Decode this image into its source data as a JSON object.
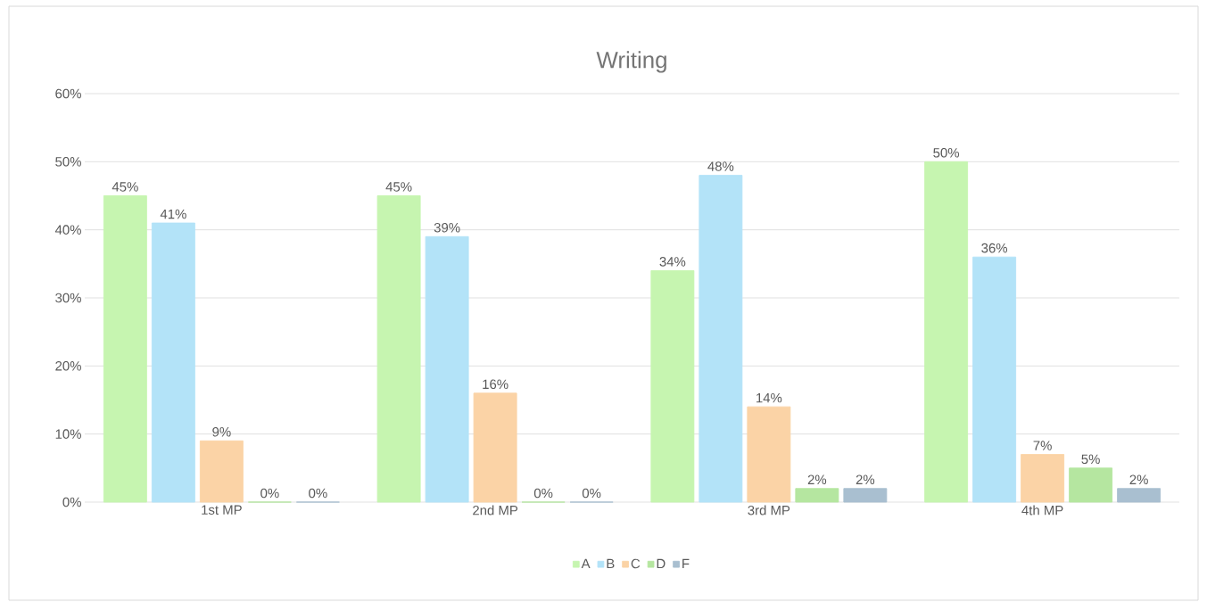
{
  "chart_data": {
    "type": "bar",
    "title": "Writing",
    "categories": [
      "1st MP",
      "2nd MP",
      "3rd MP",
      "4th MP"
    ],
    "series": [
      {
        "name": "A",
        "color": "#c6f5b0",
        "values": [
          45,
          45,
          34,
          50
        ],
        "value_labels": [
          "45%",
          "45%",
          "34%",
          "50%"
        ]
      },
      {
        "name": "B",
        "color": "#b3e3f8",
        "values": [
          41,
          39,
          48,
          36
        ],
        "value_labels": [
          "41%",
          "39%",
          "48%",
          "36%"
        ]
      },
      {
        "name": "C",
        "color": "#fbd3a6",
        "values": [
          9,
          16,
          14,
          7
        ],
        "value_labels": [
          "9%",
          "16%",
          "14%",
          "7%"
        ]
      },
      {
        "name": "D",
        "color": "#b5e6a0",
        "values": [
          0,
          0,
          2,
          5
        ],
        "value_labels": [
          "0%",
          "0%",
          "2%",
          "5%"
        ]
      },
      {
        "name": "F",
        "color": "#a9bfd0",
        "values": [
          0,
          0,
          2,
          2
        ],
        "value_labels": [
          "0%",
          "0%",
          "2%",
          "2%"
        ]
      }
    ],
    "ylim": [
      0,
      60
    ],
    "yticks": [
      {
        "value": 0,
        "label": "0%"
      },
      {
        "value": 10,
        "label": "10%"
      },
      {
        "value": 20,
        "label": "20%"
      },
      {
        "value": 30,
        "label": "30%"
      },
      {
        "value": 40,
        "label": "40%"
      },
      {
        "value": 50,
        "label": "50%"
      },
      {
        "value": 60,
        "label": "60%"
      }
    ],
    "grid": "y",
    "legend": "bottom"
  }
}
